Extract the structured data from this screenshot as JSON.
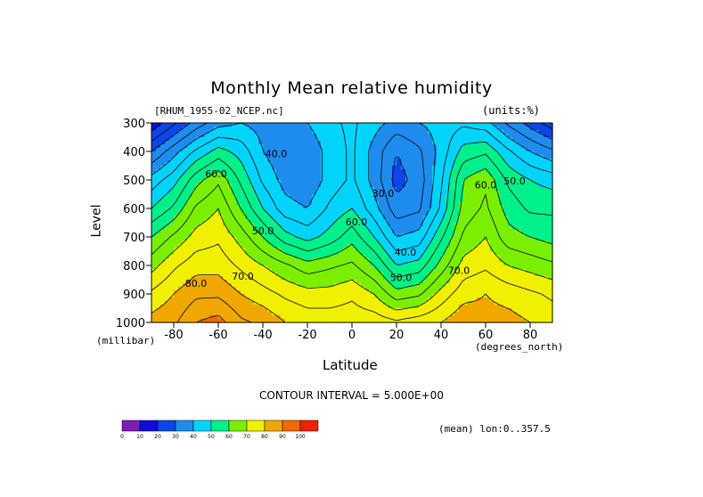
{
  "title": "Monthly Mean relative humidity",
  "dataset_label": "[RHUM_1955-02_NCEP.nc]",
  "units_label": "(units:%)",
  "contour_interval_text": "CONTOUR INTERVAL = 5.000E+00",
  "averaging_note": "(mean) lon:0..357.5",
  "chart_data": {
    "type": "heatmap",
    "title": "Monthly Mean relative humidity",
    "xlabel": "Latitude",
    "x_unit": "(degrees_north)",
    "ylabel": "Level",
    "y_unit": "(millibar)",
    "xlim": [
      -90,
      90
    ],
    "ylim": [
      1000,
      300
    ],
    "x_ticks": [
      -80,
      -60,
      -40,
      -20,
      0,
      20,
      40,
      60,
      80
    ],
    "x_tick_labels": [
      "-80",
      "-60",
      "-40",
      "-20",
      "0",
      "20",
      "40",
      "60",
      "80"
    ],
    "y_ticks": [
      300,
      400,
      500,
      600,
      700,
      800,
      900,
      1000
    ],
    "y_tick_labels": [
      "300",
      "400",
      "500",
      "600",
      "700",
      "800",
      "900",
      "1000"
    ],
    "contour_interval": 5,
    "latitudes": [
      -90,
      -80,
      -70,
      -60,
      -50,
      -40,
      -30,
      -20,
      -10,
      0,
      10,
      20,
      30,
      40,
      50,
      60,
      70,
      80,
      90
    ],
    "levels": [
      1000,
      900,
      800,
      700,
      600,
      500,
      400,
      300
    ],
    "values": [
      [
        82,
        84,
        90,
        92,
        86,
        84,
        80,
        78,
        78,
        78,
        78,
        76,
        78,
        80,
        84,
        82,
        82,
        80,
        78
      ],
      [
        76,
        80,
        84,
        84,
        80,
        77,
        74,
        72,
        72,
        74,
        70,
        62,
        64,
        72,
        78,
        80,
        78,
        76,
        74
      ],
      [
        68,
        74,
        78,
        78,
        74,
        70,
        66,
        62,
        64,
        66,
        60,
        50,
        52,
        62,
        72,
        74,
        70,
        68,
        66
      ],
      [
        60,
        66,
        72,
        74,
        68,
        60,
        52,
        48,
        52,
        58,
        50,
        40,
        42,
        54,
        66,
        70,
        62,
        60,
        58
      ],
      [
        50,
        56,
        66,
        70,
        60,
        50,
        42,
        40,
        46,
        50,
        42,
        32,
        34,
        46,
        62,
        66,
        58,
        54,
        54
      ],
      [
        42,
        48,
        58,
        64,
        54,
        44,
        38,
        36,
        42,
        46,
        38,
        28,
        32,
        44,
        60,
        64,
        54,
        50,
        48
      ],
      [
        30,
        38,
        46,
        52,
        48,
        40,
        36,
        36,
        42,
        46,
        38,
        30,
        34,
        42,
        52,
        54,
        46,
        40,
        36
      ],
      [
        16,
        24,
        32,
        38,
        40,
        38,
        38,
        40,
        44,
        46,
        42,
        38,
        40,
        42,
        44,
        42,
        34,
        28,
        22
      ]
    ],
    "contour_labels": [
      {
        "text": "40.0",
        "lat": -34,
        "lev": 420
      },
      {
        "text": "60.0",
        "lat": -61,
        "lev": 490
      },
      {
        "text": "50.0",
        "lat": -40,
        "lev": 690
      },
      {
        "text": "30.0",
        "lat": 14,
        "lev": 560
      },
      {
        "text": "60.0",
        "lat": 2,
        "lev": 660
      },
      {
        "text": "40.0",
        "lat": 24,
        "lev": 765
      },
      {
        "text": "50.0",
        "lat": 22,
        "lev": 855
      },
      {
        "text": "60.0",
        "lat": 60,
        "lev": 530
      },
      {
        "text": "50.0",
        "lat": 73,
        "lev": 515
      },
      {
        "text": "70.0",
        "lat": 48,
        "lev": 830
      },
      {
        "text": "70.0",
        "lat": -49,
        "lev": 850
      },
      {
        "text": "80.0",
        "lat": -70,
        "lev": 875
      }
    ],
    "colorbar": {
      "bounds": [
        "0",
        "10",
        "20",
        "30",
        "40",
        "50",
        "60",
        "70",
        "80",
        "90",
        "100"
      ],
      "colors": [
        "#7a1fb4",
        "#0c0ce0",
        "#0a46e8",
        "#1e8cee",
        "#00d4fc",
        "#00f08a",
        "#7af000",
        "#f0f000",
        "#f0a800",
        "#f06a00",
        "#f02000"
      ]
    }
  }
}
